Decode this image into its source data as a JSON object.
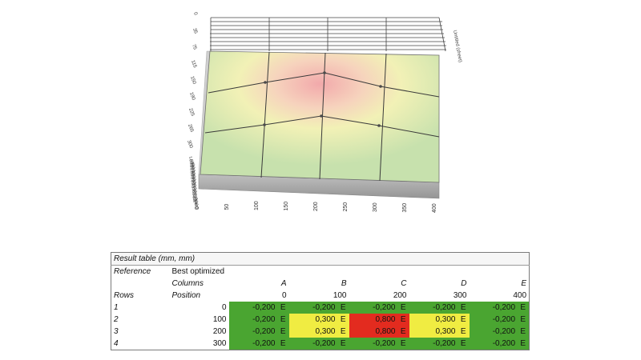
{
  "chart_data": {
    "type": "heatmap",
    "surface": {
      "x_positions": [
        0,
        100,
        200,
        300,
        400
      ],
      "y_positions": [
        0,
        100,
        200,
        300
      ],
      "values": [
        [
          -0.2,
          -0.2,
          -0.2,
          -0.2,
          -0.2
        ],
        [
          -0.2,
          0.3,
          0.8,
          0.3,
          -0.2
        ],
        [
          -0.2,
          0.3,
          0.8,
          0.3,
          -0.2
        ],
        [
          -0.2,
          -0.2,
          -0.2,
          -0.2,
          -0.2
        ]
      ]
    },
    "x_ticks": [
      "0",
      "50",
      "100",
      "150",
      "200",
      "250",
      "300",
      "350",
      "400"
    ],
    "y_ticks": [
      "0",
      "35",
      "75",
      "115",
      "150",
      "190",
      "225",
      "265",
      "300"
    ],
    "z_ticks": [
      "1,000",
      "0,900",
      "0,800",
      "0,700",
      "0,600",
      "0,500",
      "0,400",
      "0,300",
      "0,200",
      "0,100",
      "0,000",
      "-0,100",
      "-0,200",
      "-0,300",
      "-0,400"
    ],
    "right_axis_label": "Untitled (sheet)",
    "colors": {
      "low": "#c9e2ad",
      "mid": "#f4f0b2",
      "high": "#f3b1b0",
      "base": "#a5a5a5",
      "grid": "#3a3a3a"
    }
  },
  "table": {
    "title": "Result table (mm, mm)",
    "reference_label": "Reference",
    "reference_value": "Best optimized",
    "columns_label": "Columns",
    "rows_label": "Rows",
    "position_label": "Position",
    "column_letters": [
      "A",
      "B",
      "C",
      "D",
      "E"
    ],
    "column_positions": [
      "0",
      "100",
      "200",
      "300",
      "400"
    ],
    "rows": [
      {
        "id": "1",
        "position": "0",
        "cells": [
          {
            "v": "-0,200",
            "u": "E"
          },
          {
            "v": "-0,200",
            "u": "E"
          },
          {
            "v": "-0,200",
            "u": "E"
          },
          {
            "v": "-0,200",
            "u": "E"
          },
          {
            "v": "-0,200",
            "u": "E"
          }
        ]
      },
      {
        "id": "2",
        "position": "100",
        "cells": [
          {
            "v": "-0,200",
            "u": "E"
          },
          {
            "v": "0,300",
            "u": "E"
          },
          {
            "v": "0,800",
            "u": "E"
          },
          {
            "v": "0,300",
            "u": "E"
          },
          {
            "v": "-0,200",
            "u": "E"
          }
        ]
      },
      {
        "id": "3",
        "position": "200",
        "cells": [
          {
            "v": "-0,200",
            "u": "E"
          },
          {
            "v": "0,300",
            "u": "E"
          },
          {
            "v": "0,800",
            "u": "E"
          },
          {
            "v": "0,300",
            "u": "E"
          },
          {
            "v": "-0,200",
            "u": "E"
          }
        ]
      },
      {
        "id": "4",
        "position": "300",
        "cells": [
          {
            "v": "-0,200",
            "u": "E"
          },
          {
            "v": "-0,200",
            "u": "E"
          },
          {
            "v": "-0,200",
            "u": "E"
          },
          {
            "v": "-0,200",
            "u": "E"
          },
          {
            "v": "-0,200",
            "u": "E"
          }
        ]
      }
    ],
    "cell_colors": {
      "low": "#4aa531",
      "mid": "#f0ec42",
      "high": "#e32b1f"
    }
  }
}
